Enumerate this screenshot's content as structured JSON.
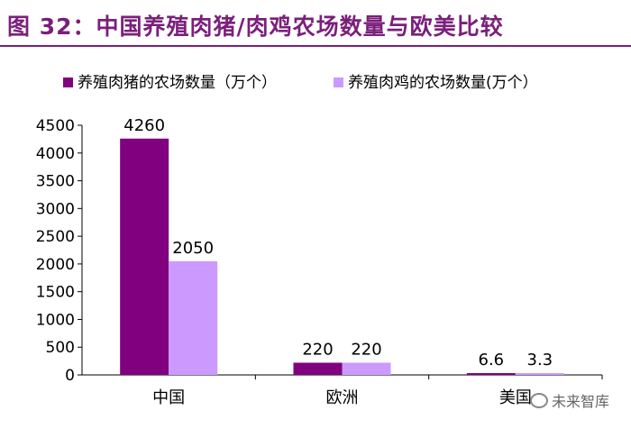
{
  "header": {
    "title": "图 32：中国养殖肉猪/肉鸡农场数量与欧美比较"
  },
  "watermark": {
    "icon": "wechat-icon",
    "text": "未来智库"
  },
  "chart_data": {
    "type": "bar",
    "categories": [
      "中国",
      "欧洲",
      "美国"
    ],
    "series": [
      {
        "name": "养殖肉猪的农场数量（万个）",
        "values": [
          4260,
          220,
          6.6
        ],
        "labels": [
          "4260",
          "220",
          "6.6"
        ],
        "color": "#800080"
      },
      {
        "name": "养殖肉鸡的农场数量(万个）",
        "values": [
          2050,
          220,
          3.3
        ],
        "labels": [
          "2050",
          "220",
          "3.3"
        ],
        "color": "#cc99ff"
      }
    ],
    "yticks": [
      "0",
      "500",
      "1000",
      "1500",
      "2000",
      "2500",
      "3000",
      "3500",
      "4000",
      "4500"
    ],
    "ylim": [
      0,
      4500
    ],
    "legend_position": "top-left",
    "grid": false
  }
}
